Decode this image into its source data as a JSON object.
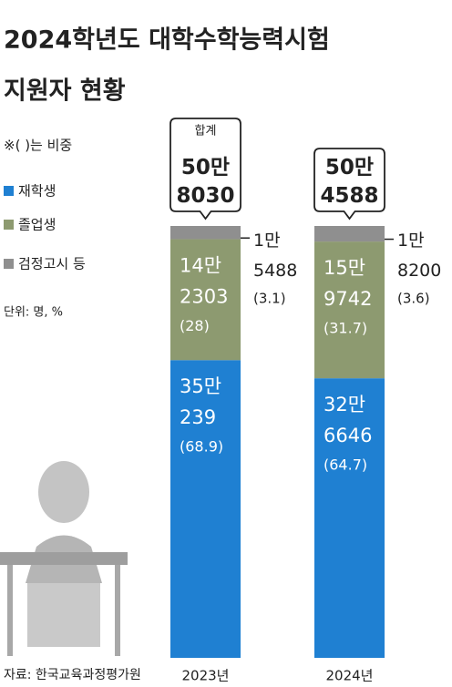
{
  "chart_data": {
    "type": "stacked-bar",
    "title_lines": [
      "2024학년도 대학수학능력시험",
      "지원자 현황"
    ],
    "note": "※( )는 비중",
    "unit": "단위: 명, %",
    "source": "자료: 한국교육과정평가원",
    "categories": [
      "2023년",
      "2024년"
    ],
    "total_title": "합계",
    "totals": [
      508030,
      504588
    ],
    "total_labels": [
      "50만 8030",
      "50만 4588"
    ],
    "series": [
      {
        "name": "재학생",
        "color": "#1f80d2",
        "values": [
          350239,
          326646
        ],
        "value_labels": [
          "35만 239",
          "32만 6646"
        ],
        "share_labels": [
          "(68.9)",
          "(64.7)"
        ]
      },
      {
        "name": "졸업생",
        "color": "#8d9a70",
        "values": [
          142303,
          159742
        ],
        "value_labels": [
          "14만 2303",
          "15만 9742"
        ],
        "share_labels": [
          "(28)",
          "(31.7)"
        ]
      },
      {
        "name": "검정고시 등",
        "color": "#8f8f8f",
        "values": [
          15488,
          18200
        ],
        "value_labels": [
          "1만 5488",
          "1만 8200"
        ],
        "share_labels": [
          "(3.1)",
          "(3.6)"
        ]
      }
    ]
  }
}
